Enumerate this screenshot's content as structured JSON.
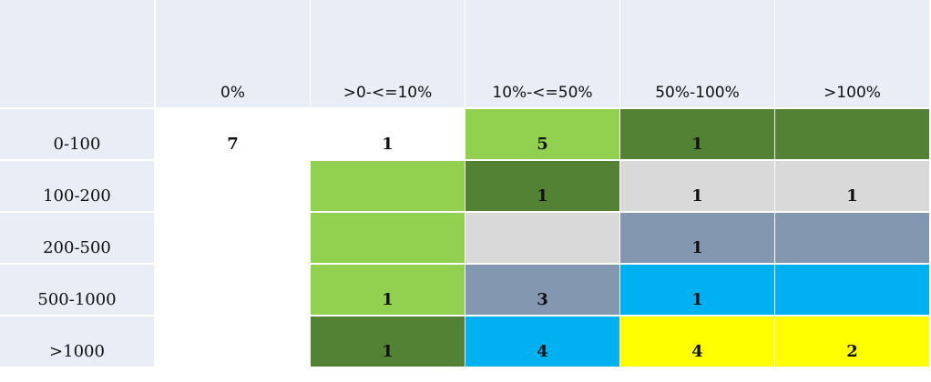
{
  "table": {
    "columns": [
      "0%",
      ">0-<=10%",
      "10%-<=50%",
      "50%-100%",
      ">100%"
    ],
    "rows": [
      {
        "label": "0-100",
        "cells": [
          7,
          1,
          5,
          1,
          null
        ],
        "fills": [
          "#ffffff",
          "#ffffff",
          "#92d050",
          "#548235",
          "#548235"
        ]
      },
      {
        "label": "100-200",
        "cells": [
          null,
          null,
          1,
          1,
          1
        ],
        "fills": [
          "#ffffff",
          "#92d050",
          "#548235",
          "#d9d9d9",
          "#d9d9d9"
        ]
      },
      {
        "label": "200-500",
        "cells": [
          null,
          null,
          null,
          1,
          null
        ],
        "fills": [
          "#ffffff",
          "#92d050",
          "#d9d9d9",
          "#8497b0",
          "#8497b0"
        ]
      },
      {
        "label": "500-1000",
        "cells": [
          null,
          1,
          3,
          1,
          null
        ],
        "fills": [
          "#ffffff",
          "#92d050",
          "#8497b0",
          "#00b0f0",
          "#00b0f0"
        ]
      },
      {
        "label": ">1000",
        "cells": [
          null,
          1,
          4,
          4,
          2
        ],
        "fills": [
          "#ffffff",
          "#548235",
          "#00b0f0",
          "#ffff00",
          "#ffff00"
        ]
      }
    ]
  }
}
